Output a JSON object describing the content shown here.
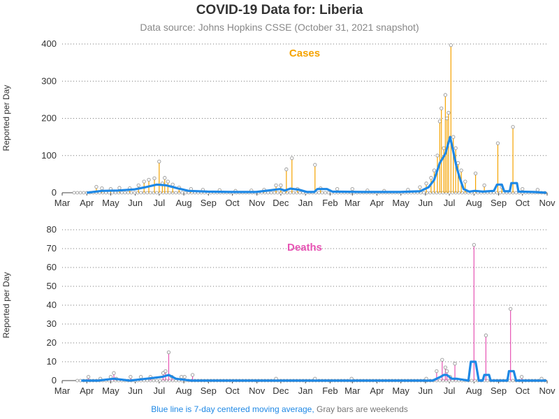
{
  "title": "COVID-19 Data for: Liberia",
  "subtitle": "Data source: Johns Hopkins CSSE (October 31, 2021 snapshot)",
  "footnote": {
    "blue": "Blue line is 7-day centered moving average,",
    "gray": "Gray bars are weekends"
  },
  "colors": {
    "cases": "#f5a300",
    "deaths": "#e754b4",
    "average": "#1e88e5",
    "marker": "#999999"
  },
  "chart_data": [
    {
      "type": "bar",
      "title": "Cases",
      "ylabel": "Reported per Day",
      "xlabel": "",
      "x_ticks": [
        "Mar",
        "Apr",
        "May",
        "Jun",
        "Jul",
        "Aug",
        "Sep",
        "Oct",
        "Nov",
        "Dec",
        "Jan",
        "Feb",
        "Mar",
        "Apr",
        "May",
        "Jun",
        "Jul",
        "Aug",
        "Sep",
        "Oct",
        "Nov"
      ],
      "xlim": [
        "2020-03-01",
        "2021-11-01"
      ],
      "ylim": [
        0,
        400
      ],
      "y_ticks": [
        0,
        100,
        200,
        300,
        400
      ],
      "grid": "horizontal dotted",
      "series": [
        {
          "name": "Cases",
          "points": [
            [
              "2020-04-13",
              16
            ],
            [
              "2020-04-20",
              12
            ],
            [
              "2020-05-01",
              10
            ],
            [
              "2020-05-12",
              13
            ],
            [
              "2020-05-25",
              12
            ],
            [
              "2020-06-05",
              20
            ],
            [
              "2020-06-12",
              30
            ],
            [
              "2020-06-18",
              35
            ],
            [
              "2020-06-25",
              39
            ],
            [
              "2020-07-01",
              84
            ],
            [
              "2020-07-05",
              25
            ],
            [
              "2020-07-08",
              40
            ],
            [
              "2020-07-12",
              30
            ],
            [
              "2020-07-18",
              22
            ],
            [
              "2020-07-26",
              14
            ],
            [
              "2020-08-10",
              10
            ],
            [
              "2020-08-25",
              8
            ],
            [
              "2020-09-15",
              7
            ],
            [
              "2020-10-05",
              5
            ],
            [
              "2020-10-25",
              6
            ],
            [
              "2020-11-10",
              8
            ],
            [
              "2020-11-25",
              20
            ],
            [
              "2020-12-01",
              20
            ],
            [
              "2020-12-08",
              63
            ],
            [
              "2020-12-15",
              93
            ],
            [
              "2020-12-22",
              10
            ],
            [
              "2021-01-13",
              75
            ],
            [
              "2021-01-20",
              12
            ],
            [
              "2021-02-10",
              10
            ],
            [
              "2021-03-01",
              10
            ],
            [
              "2021-03-20",
              6
            ],
            [
              "2021-04-10",
              5
            ],
            [
              "2021-05-10",
              8
            ],
            [
              "2021-05-25",
              15
            ],
            [
              "2021-06-02",
              25
            ],
            [
              "2021-06-08",
              40
            ],
            [
              "2021-06-12",
              60
            ],
            [
              "2021-06-16",
              100
            ],
            [
              "2021-06-19",
              192
            ],
            [
              "2021-06-21",
              227
            ],
            [
              "2021-06-24",
              120
            ],
            [
              "2021-06-26",
              263
            ],
            [
              "2021-06-28",
              200
            ],
            [
              "2021-06-30",
              215
            ],
            [
              "2021-07-03",
              397
            ],
            [
              "2021-07-06",
              150
            ],
            [
              "2021-07-09",
              120
            ],
            [
              "2021-07-12",
              80
            ],
            [
              "2021-07-16",
              60
            ],
            [
              "2021-07-21",
              30
            ],
            [
              "2021-08-03",
              52
            ],
            [
              "2021-08-14",
              20
            ],
            [
              "2021-08-31",
              133
            ],
            [
              "2021-09-05",
              15
            ],
            [
              "2021-09-19",
              177
            ],
            [
              "2021-10-01",
              10
            ],
            [
              "2021-10-20",
              8
            ]
          ]
        },
        {
          "name": "7-day average",
          "points": [
            [
              "2020-04-01",
              0
            ],
            [
              "2020-04-20",
              5
            ],
            [
              "2020-05-10",
              6
            ],
            [
              "2020-05-31",
              9
            ],
            [
              "2020-06-14",
              15
            ],
            [
              "2020-06-28",
              22
            ],
            [
              "2020-07-10",
              20
            ],
            [
              "2020-07-24",
              12
            ],
            [
              "2020-08-07",
              5
            ],
            [
              "2020-08-31",
              3
            ],
            [
              "2020-09-30",
              2
            ],
            [
              "2020-10-31",
              2
            ],
            [
              "2020-11-15",
              6
            ],
            [
              "2020-11-30",
              10
            ],
            [
              "2020-12-06",
              6
            ],
            [
              "2020-12-13",
              11
            ],
            [
              "2020-12-24",
              8
            ],
            [
              "2021-01-03",
              2
            ],
            [
              "2021-01-12",
              2
            ],
            [
              "2021-01-16",
              10
            ],
            [
              "2021-01-28",
              10
            ],
            [
              "2021-02-04",
              3
            ],
            [
              "2021-03-15",
              2
            ],
            [
              "2021-04-30",
              2
            ],
            [
              "2021-05-25",
              4
            ],
            [
              "2021-06-05",
              15
            ],
            [
              "2021-06-12",
              35
            ],
            [
              "2021-06-19",
              80
            ],
            [
              "2021-06-26",
              105
            ],
            [
              "2021-07-02",
              150
            ],
            [
              "2021-07-06",
              110
            ],
            [
              "2021-07-10",
              70
            ],
            [
              "2021-07-14",
              40
            ],
            [
              "2021-07-19",
              10
            ],
            [
              "2021-07-26",
              3
            ],
            [
              "2021-08-02",
              5
            ],
            [
              "2021-08-12",
              3
            ],
            [
              "2021-08-26",
              5
            ],
            [
              "2021-08-30",
              22
            ],
            [
              "2021-09-05",
              22
            ],
            [
              "2021-09-08",
              4
            ],
            [
              "2021-09-15",
              4
            ],
            [
              "2021-09-17",
              26
            ],
            [
              "2021-09-24",
              26
            ],
            [
              "2021-09-26",
              3
            ],
            [
              "2021-10-15",
              2
            ],
            [
              "2021-10-31",
              0
            ]
          ]
        }
      ]
    },
    {
      "type": "bar",
      "title": "Deaths",
      "ylabel": "Reported per Day",
      "xlabel": "",
      "x_ticks": [
        "Mar",
        "Apr",
        "May",
        "Jun",
        "Jul",
        "Aug",
        "Sep",
        "Oct",
        "Nov",
        "Dec",
        "Jan",
        "Feb",
        "Mar",
        "Apr",
        "May",
        "Jun",
        "Jul",
        "Aug",
        "Sep",
        "Oct",
        "Nov"
      ],
      "xlim": [
        "2020-03-01",
        "2021-11-01"
      ],
      "ylim": [
        0,
        80
      ],
      "y_ticks": [
        0,
        10,
        20,
        30,
        40,
        50,
        60,
        70,
        80
      ],
      "grid": "horizontal dotted",
      "series": [
        {
          "name": "Deaths",
          "points": [
            [
              "2020-04-03",
              2
            ],
            [
              "2020-04-18",
              1
            ],
            [
              "2020-05-01",
              2
            ],
            [
              "2020-05-05",
              4
            ],
            [
              "2020-05-08",
              1
            ],
            [
              "2020-05-26",
              2
            ],
            [
              "2020-06-08",
              2
            ],
            [
              "2020-06-20",
              2
            ],
            [
              "2020-07-06",
              4
            ],
            [
              "2020-07-09",
              5
            ],
            [
              "2020-07-13",
              15
            ],
            [
              "2020-07-17",
              2
            ],
            [
              "2020-07-29",
              2
            ],
            [
              "2020-08-02",
              2
            ],
            [
              "2020-08-12",
              3
            ],
            [
              "2020-11-25",
              1
            ],
            [
              "2021-01-13",
              1
            ],
            [
              "2021-02-28",
              1
            ],
            [
              "2021-06-02",
              1
            ],
            [
              "2021-06-15",
              5
            ],
            [
              "2021-06-22",
              11
            ],
            [
              "2021-06-26",
              7
            ],
            [
              "2021-06-28",
              5
            ],
            [
              "2021-07-02",
              2
            ],
            [
              "2021-07-08",
              9
            ],
            [
              "2021-08-01",
              72
            ],
            [
              "2021-08-16",
              24
            ],
            [
              "2021-09-16",
              38
            ],
            [
              "2021-09-30",
              2
            ],
            [
              "2021-10-25",
              1
            ]
          ]
        },
        {
          "name": "7-day average",
          "points": [
            [
              "2020-03-25",
              0
            ],
            [
              "2020-04-15",
              0
            ],
            [
              "2020-05-05",
              1
            ],
            [
              "2020-05-25",
              0
            ],
            [
              "2020-06-15",
              1
            ],
            [
              "2020-07-05",
              2
            ],
            [
              "2020-07-13",
              3
            ],
            [
              "2020-07-22",
              1
            ],
            [
              "2020-08-10",
              0
            ],
            [
              "2021-06-10",
              0
            ],
            [
              "2021-06-20",
              2
            ],
            [
              "2021-06-24",
              3
            ],
            [
              "2021-06-28",
              3
            ],
            [
              "2021-07-04",
              1
            ],
            [
              "2021-07-10",
              1
            ],
            [
              "2021-07-25",
              0
            ],
            [
              "2021-07-28",
              10
            ],
            [
              "2021-08-03",
              10
            ],
            [
              "2021-08-07",
              0
            ],
            [
              "2021-08-12",
              0
            ],
            [
              "2021-08-14",
              3
            ],
            [
              "2021-08-20",
              3
            ],
            [
              "2021-08-22",
              0
            ],
            [
              "2021-09-12",
              0
            ],
            [
              "2021-09-14",
              5
            ],
            [
              "2021-09-20",
              5
            ],
            [
              "2021-09-23",
              0
            ],
            [
              "2021-10-31",
              0
            ]
          ]
        }
      ]
    }
  ]
}
